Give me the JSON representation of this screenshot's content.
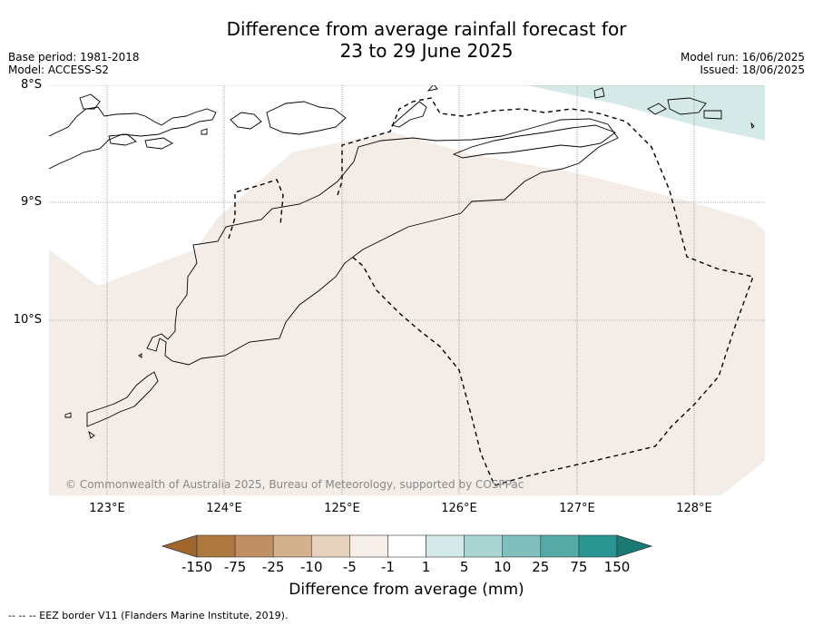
{
  "title_line1": "Difference from average rainfall forecast for",
  "title_line2": "23 to 29 June 2025",
  "base_period": "Base period: 1981-2018",
  "model": "Model: ACCESS-S2",
  "model_run": "Model run: 16/06/2025",
  "issued": "Issued: 18/06/2025",
  "lat_labels": [
    "8°S",
    "9°S",
    "10°S"
  ],
  "lon_labels": [
    "123°E",
    "124°E",
    "125°E",
    "126°E",
    "127°E",
    "128°E"
  ],
  "copyright": "© Commonwealth of Australia 2025, Bureau of Meteorology, supported by COSPPac",
  "colorbar": {
    "ticks": [
      "-150",
      "-75",
      "-25",
      "-10",
      "-5",
      "-1",
      "1",
      "5",
      "10",
      "25",
      "75",
      "150"
    ],
    "colors": [
      "#a0662d",
      "#ad7740",
      "#c08f64",
      "#d3b08e",
      "#e6d3bf",
      "#f6efe9",
      "#ffffff",
      "#d5eae8",
      "#abd5d2",
      "#80c0bc",
      "#55aaa6",
      "#2a9590",
      "#1a7a75"
    ],
    "label": "Difference from average (mm)"
  },
  "footnote": "-- -- -- EEZ border V11 (Flanders Marine Institute, 2019)."
}
